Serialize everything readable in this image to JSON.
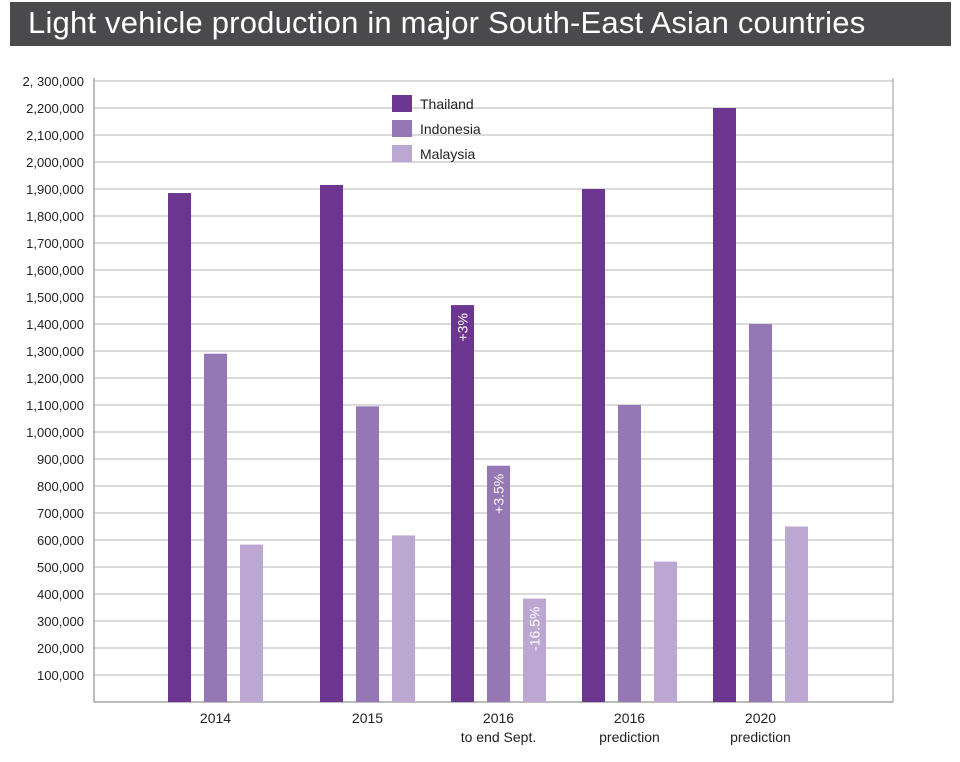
{
  "header": {
    "title": "Light vehicle production in major South-East Asian countries"
  },
  "chart_data": {
    "type": "bar",
    "title": "Light vehicle production in major South-East Asian countries",
    "xlabel": "",
    "ylabel": "",
    "ylim": [
      0,
      2300000
    ],
    "y_ticks": [
      100000,
      200000,
      300000,
      400000,
      500000,
      600000,
      700000,
      800000,
      900000,
      1000000,
      1100000,
      1200000,
      1300000,
      1400000,
      1500000,
      1600000,
      1700000,
      1800000,
      1900000,
      2000000,
      2100000,
      2200000,
      2300000
    ],
    "y_tick_labels": [
      "100,000",
      "200,000",
      "300,000",
      "400,000",
      "500,000",
      "600,000",
      "700,000",
      "800,000",
      "900,000",
      "1,000,000",
      "1,100,000",
      "1,200,000",
      "1,300,000",
      "1,400,000",
      "1,500,000",
      "1,600,000",
      "1,700,000",
      "1,800,000",
      "1,900,000",
      "2,000,000",
      "2,100,000",
      "2,200,000",
      "2, 300,000"
    ],
    "grid": true,
    "legend_position": "top-center",
    "categories": [
      [
        "2014"
      ],
      [
        "2015"
      ],
      [
        "2016",
        "to end Sept."
      ],
      [
        "2016",
        "prediction"
      ],
      [
        "2020",
        "prediction"
      ]
    ],
    "series": [
      {
        "name": "Thailand",
        "color": "#6b3590",
        "values": [
          1885000,
          1915000,
          1470000,
          1900000,
          2200000
        ]
      },
      {
        "name": "Indonesia",
        "color": "#9677b5",
        "values": [
          1290000,
          1095000,
          875000,
          1100000,
          1400000
        ]
      },
      {
        "name": "Malaysia",
        "color": "#bba7d2",
        "values": [
          583000,
          617000,
          383000,
          520000,
          650000
        ]
      }
    ],
    "annotations": [
      {
        "series": 0,
        "category": 2,
        "text": "+3%"
      },
      {
        "series": 1,
        "category": 2,
        "text": "+3.5%"
      },
      {
        "series": 2,
        "category": 2,
        "text": "-16.5%"
      }
    ]
  }
}
